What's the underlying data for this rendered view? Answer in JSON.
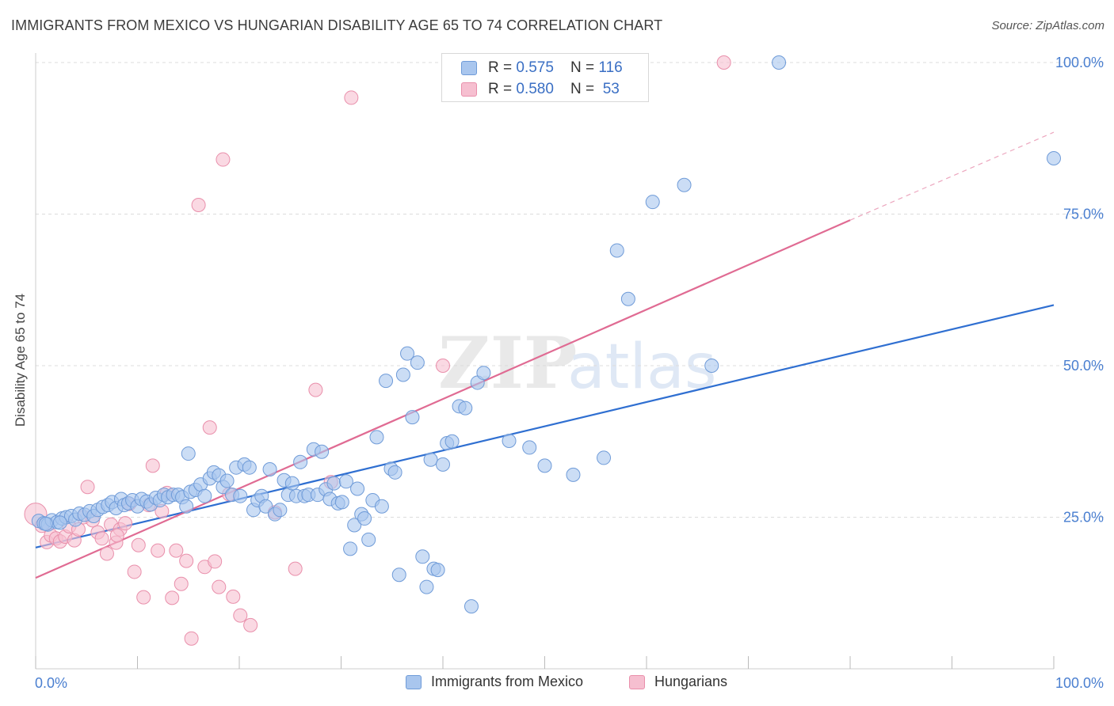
{
  "header": {
    "title": "IMMIGRANTS FROM MEXICO VS HUNGARIAN DISABILITY AGE 65 TO 74 CORRELATION CHART",
    "source": "Source: ZipAtlas.com"
  },
  "watermark": {
    "zip": "ZIP",
    "atlas": "atlas"
  },
  "legend_top": {
    "rows": [
      {
        "r_label": "R = ",
        "r_value": "0.575",
        "n_label": "N = ",
        "n_value": "116"
      },
      {
        "r_label": "R = ",
        "r_value": "0.580",
        "n_label": "N = ",
        "n_value": " 53"
      }
    ]
  },
  "legend_bottom": {
    "items": [
      "Immigrants from Mexico",
      "Hungarians"
    ]
  },
  "colors": {
    "blue_fill": "#a9c6ee",
    "blue_stroke": "#6f9bd8",
    "blue_line": "#2f6fd1",
    "pink_fill": "#f6bfd0",
    "pink_stroke": "#e98fab",
    "pink_line": "#e06b93",
    "axis_text": "#4a7fd0",
    "grid": "#dcdcdc"
  },
  "chart_data": {
    "type": "scatter",
    "title": "IMMIGRANTS FROM MEXICO VS HUNGARIAN DISABILITY AGE 65 TO 74 CORRELATION CHART",
    "xlabel": "",
    "ylabel": "Disability Age 65 to 74",
    "xlim": [
      0,
      100
    ],
    "ylim": [
      0,
      100
    ],
    "x_tick_labels": [
      "0.0%",
      "100.0%"
    ],
    "y_tick_labels": [
      "25.0%",
      "50.0%",
      "75.0%",
      "100.0%"
    ],
    "y_ticks": [
      25,
      50,
      75,
      100
    ],
    "grid": true,
    "legend_placement": "bottom",
    "series": [
      {
        "name": "Immigrants from Mexico",
        "r": 0.575,
        "n": 116,
        "trend": {
          "x": [
            0,
            100
          ],
          "y": [
            20.0,
            60.0
          ]
        },
        "points": [
          [
            0.3,
            24.4
          ],
          [
            0.8,
            24.0
          ],
          [
            1.2,
            23.8
          ],
          [
            1.6,
            24.5
          ],
          [
            2.1,
            24.2
          ],
          [
            2.6,
            24.8
          ],
          [
            3.0,
            25.0
          ],
          [
            3.5,
            25.2
          ],
          [
            3.9,
            24.6
          ],
          [
            4.3,
            25.6
          ],
          [
            4.8,
            25.4
          ],
          [
            5.3,
            26.0
          ],
          [
            5.7,
            25.2
          ],
          [
            6.1,
            26.2
          ],
          [
            6.6,
            26.7
          ],
          [
            7.1,
            27.0
          ],
          [
            7.5,
            27.5
          ],
          [
            7.9,
            26.5
          ],
          [
            8.4,
            28.0
          ],
          [
            8.7,
            27.0
          ],
          [
            9.1,
            27.3
          ],
          [
            9.5,
            27.8
          ],
          [
            10.0,
            26.8
          ],
          [
            10.4,
            28.0
          ],
          [
            10.9,
            27.6
          ],
          [
            11.3,
            27.1
          ],
          [
            11.8,
            28.2
          ],
          [
            12.2,
            27.8
          ],
          [
            12.6,
            28.7
          ],
          [
            13.0,
            28.3
          ],
          [
            13.5,
            28.7
          ],
          [
            14.0,
            28.7
          ],
          [
            14.4,
            28.3
          ],
          [
            14.8,
            26.8
          ],
          [
            15.2,
            29.2
          ],
          [
            15.7,
            29.5
          ],
          [
            16.2,
            30.4
          ],
          [
            16.6,
            28.5
          ],
          [
            17.1,
            31.4
          ],
          [
            17.5,
            32.4
          ],
          [
            18.0,
            31.9
          ],
          [
            18.4,
            30.0
          ],
          [
            18.8,
            31.0
          ],
          [
            19.3,
            28.7
          ],
          [
            19.7,
            33.2
          ],
          [
            20.1,
            28.5
          ],
          [
            20.5,
            33.7
          ],
          [
            21.0,
            33.2
          ],
          [
            21.4,
            26.2
          ],
          [
            21.8,
            27.8
          ],
          [
            22.2,
            28.5
          ],
          [
            22.6,
            26.8
          ],
          [
            23.0,
            32.9
          ],
          [
            23.5,
            25.5
          ],
          [
            24.0,
            26.2
          ],
          [
            24.4,
            31.1
          ],
          [
            24.8,
            28.7
          ],
          [
            25.2,
            30.6
          ],
          [
            25.6,
            28.5
          ],
          [
            26.0,
            34.1
          ],
          [
            26.4,
            28.5
          ],
          [
            26.8,
            28.7
          ],
          [
            27.3,
            36.2
          ],
          [
            27.7,
            28.7
          ],
          [
            28.1,
            35.8
          ],
          [
            28.5,
            29.6
          ],
          [
            28.9,
            28.0
          ],
          [
            29.3,
            30.6
          ],
          [
            29.7,
            27.3
          ],
          [
            30.1,
            27.5
          ],
          [
            30.5,
            30.9
          ],
          [
            30.9,
            19.8
          ],
          [
            31.3,
            23.7
          ],
          [
            31.6,
            29.7
          ],
          [
            32.0,
            25.5
          ],
          [
            32.3,
            24.8
          ],
          [
            32.7,
            21.3
          ],
          [
            33.1,
            27.8
          ],
          [
            33.5,
            38.2
          ],
          [
            34.0,
            26.8
          ],
          [
            34.4,
            47.5
          ],
          [
            34.9,
            33.0
          ],
          [
            35.3,
            32.4
          ],
          [
            35.7,
            15.5
          ],
          [
            36.1,
            48.5
          ],
          [
            36.5,
            52.0
          ],
          [
            37.0,
            41.5
          ],
          [
            37.5,
            50.5
          ],
          [
            38.0,
            18.5
          ],
          [
            38.4,
            13.5
          ],
          [
            38.8,
            34.5
          ],
          [
            39.1,
            16.5
          ],
          [
            39.5,
            16.3
          ],
          [
            40.0,
            33.7
          ],
          [
            40.4,
            37.2
          ],
          [
            40.9,
            37.5
          ],
          [
            41.6,
            43.3
          ],
          [
            42.2,
            43.0
          ],
          [
            42.8,
            10.3
          ],
          [
            43.4,
            47.2
          ],
          [
            44.0,
            48.8
          ],
          [
            46.5,
            37.6
          ],
          [
            48.5,
            36.5
          ],
          [
            50.0,
            33.5
          ],
          [
            52.8,
            32.0
          ],
          [
            55.8,
            34.8
          ],
          [
            57.1,
            69.0
          ],
          [
            58.2,
            61.0
          ],
          [
            60.6,
            77.0
          ],
          [
            63.7,
            79.8
          ],
          [
            66.4,
            50.0
          ],
          [
            73.0,
            100.0
          ],
          [
            15.0,
            35.5
          ],
          [
            1.0,
            23.9
          ],
          [
            2.4,
            24.1
          ],
          [
            100.0,
            84.2
          ]
        ]
      },
      {
        "name": "Hungarians",
        "r": 0.58,
        "n": 53,
        "trend": {
          "x": [
            0,
            80
          ],
          "y": [
            15.0,
            74.0
          ],
          "dashed_to": [
            100,
            88.5
          ]
        },
        "points": [
          [
            0.0,
            25.5
          ],
          [
            0.6,
            23.6
          ],
          [
            1.1,
            20.9
          ],
          [
            1.5,
            22.0
          ],
          [
            2.0,
            21.5
          ],
          [
            2.4,
            21.0
          ],
          [
            2.9,
            21.8
          ],
          [
            3.3,
            23.5
          ],
          [
            3.8,
            21.2
          ],
          [
            4.2,
            23.0
          ],
          [
            4.7,
            25.0
          ],
          [
            5.1,
            30.0
          ],
          [
            5.6,
            24.5
          ],
          [
            6.1,
            22.5
          ],
          [
            6.5,
            21.5
          ],
          [
            7.0,
            19.0
          ],
          [
            7.4,
            23.8
          ],
          [
            7.9,
            20.8
          ],
          [
            8.3,
            23.0
          ],
          [
            8.8,
            24.0
          ],
          [
            9.2,
            27.2
          ],
          [
            9.7,
            16.0
          ],
          [
            10.1,
            20.4
          ],
          [
            10.6,
            11.8
          ],
          [
            11.1,
            27.0
          ],
          [
            11.5,
            33.5
          ],
          [
            12.0,
            19.5
          ],
          [
            12.4,
            26.0
          ],
          [
            12.9,
            29.0
          ],
          [
            13.4,
            11.7
          ],
          [
            13.8,
            19.5
          ],
          [
            14.3,
            14.0
          ],
          [
            14.8,
            17.8
          ],
          [
            15.3,
            5.0
          ],
          [
            16.0,
            76.5
          ],
          [
            16.6,
            16.8
          ],
          [
            17.1,
            39.8
          ],
          [
            17.6,
            17.7
          ],
          [
            18.0,
            13.5
          ],
          [
            18.4,
            84.0
          ],
          [
            19.0,
            28.8
          ],
          [
            19.4,
            11.9
          ],
          [
            20.1,
            8.8
          ],
          [
            21.1,
            7.2
          ],
          [
            23.5,
            25.8
          ],
          [
            25.5,
            16.5
          ],
          [
            27.5,
            46.0
          ],
          [
            29.0,
            30.8
          ],
          [
            31.0,
            94.2
          ],
          [
            40.0,
            50.0
          ],
          [
            54.0,
            100.0
          ],
          [
            67.6,
            100.0
          ],
          [
            8.0,
            22.0
          ]
        ]
      }
    ]
  }
}
